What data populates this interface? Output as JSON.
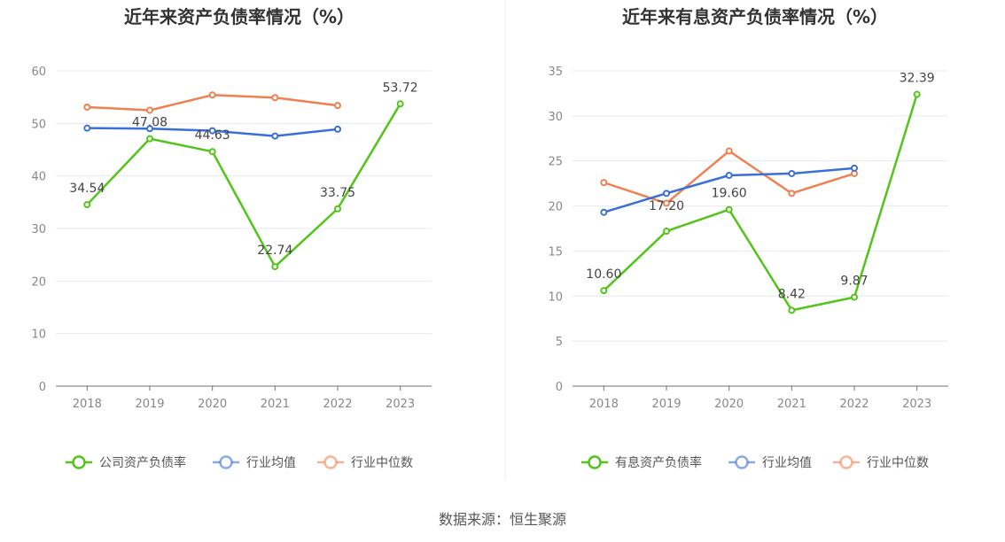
{
  "source": "数据来源：恒生聚源",
  "chart_data": [
    {
      "type": "line",
      "title": "近年来资产负债率情况（%）",
      "x": [
        "2018",
        "2019",
        "2020",
        "2021",
        "2022",
        "2023"
      ],
      "ylim": [
        0,
        60
      ],
      "yticks": [
        0,
        10,
        20,
        30,
        40,
        50,
        60
      ],
      "grid": true,
      "legend_position": "bottom",
      "series": [
        {
          "name": "公司资产负债率",
          "color": "#52c41a",
          "values": [
            34.54,
            47.08,
            44.63,
            22.74,
            33.75,
            53.72
          ],
          "labels": [
            "34.54",
            "47.08",
            "44.63",
            "22.74",
            "33.75",
            "53.72"
          ]
        },
        {
          "name": "行业均值",
          "color": "#3a6fd8",
          "values": [
            49.1,
            49.0,
            48.6,
            47.6,
            48.9,
            null
          ],
          "labels": []
        },
        {
          "name": "行业中位数",
          "color": "#f08050",
          "values": [
            53.1,
            52.5,
            55.4,
            54.9,
            53.4,
            null
          ],
          "labels": []
        }
      ]
    },
    {
      "type": "line",
      "title": "近年来有息资产负债率情况（%）",
      "x": [
        "2018",
        "2019",
        "2020",
        "2021",
        "2022",
        "2023"
      ],
      "ylim": [
        0,
        35
      ],
      "yticks": [
        0,
        5,
        10,
        15,
        20,
        25,
        30,
        35
      ],
      "grid": true,
      "legend_position": "bottom",
      "series": [
        {
          "name": "有息资产负债率",
          "color": "#52c41a",
          "values": [
            10.6,
            17.2,
            19.6,
            8.42,
            9.87,
            32.39
          ],
          "labels": [
            "10.60",
            "17.20",
            "19.60",
            "8.42",
            "9.87",
            "32.39"
          ]
        },
        {
          "name": "行业均值",
          "color": "#3a6fd8",
          "values": [
            19.3,
            21.4,
            23.4,
            23.6,
            24.2,
            null
          ],
          "labels": []
        },
        {
          "name": "行业中位数",
          "color": "#f08050",
          "values": [
            22.6,
            20.3,
            26.1,
            21.4,
            23.6,
            null
          ],
          "labels": []
        }
      ]
    }
  ]
}
